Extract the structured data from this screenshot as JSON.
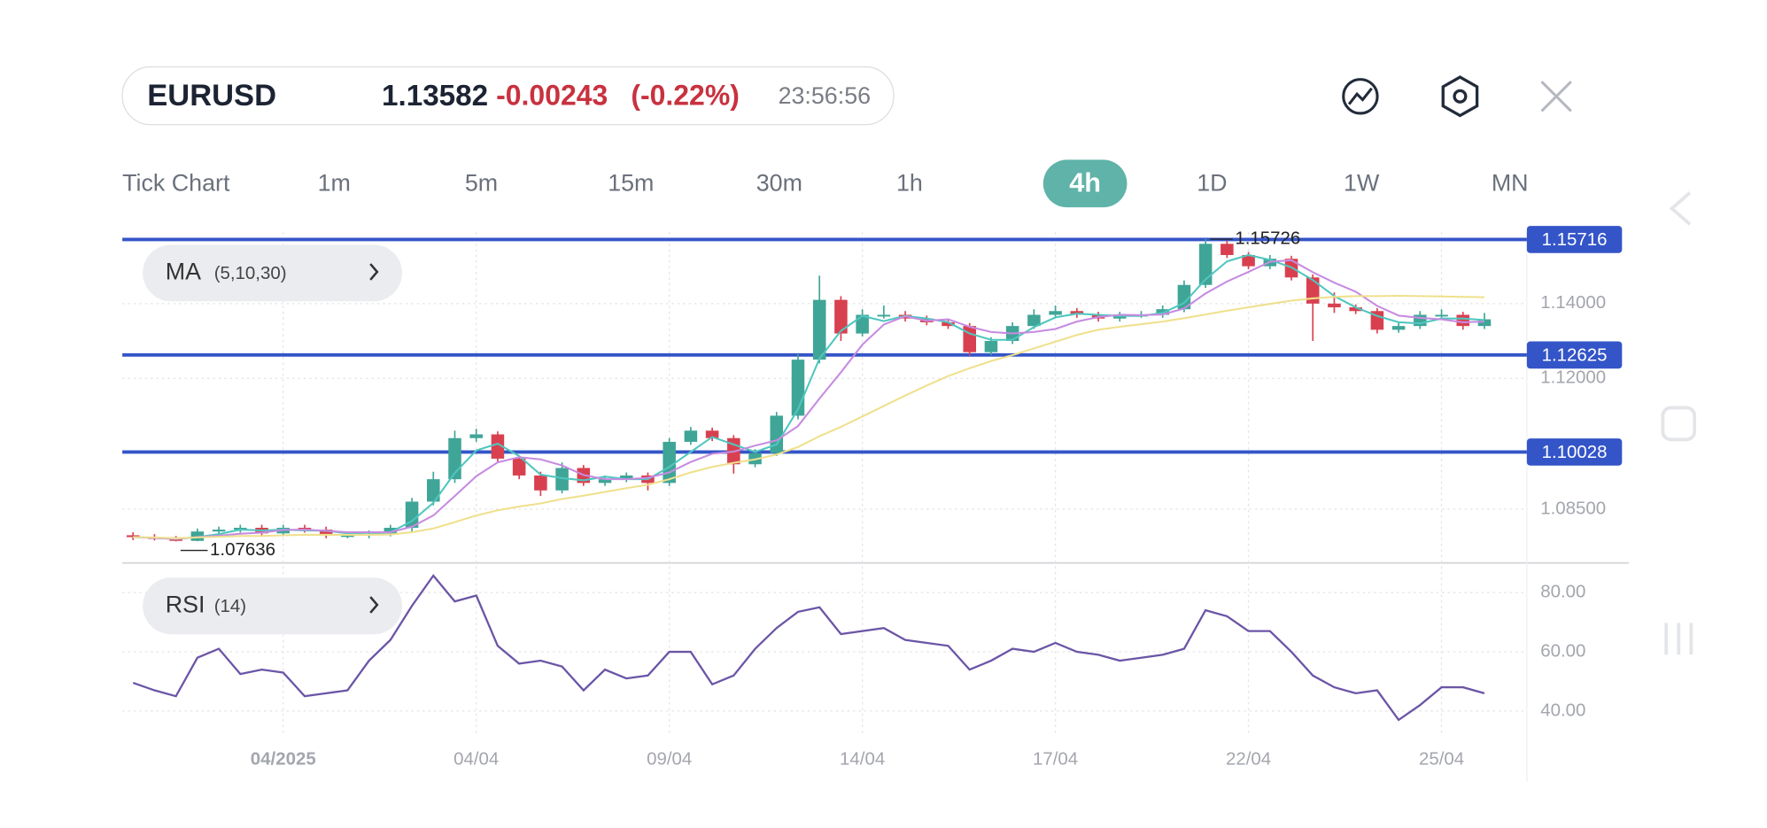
{
  "header": {
    "symbol": "EURUSD",
    "price": "1.13582",
    "change": "-0.00243",
    "change_pct": "(-0.22%)",
    "time": "23:56:56"
  },
  "timeframes": [
    "Tick Chart",
    "1m",
    "5m",
    "15m",
    "30m",
    "1h",
    "4h",
    "1D",
    "1W",
    "MN"
  ],
  "active_timeframe": 6,
  "indicators": {
    "ma": {
      "name": "MA",
      "params": "(5,10,30)"
    },
    "rsi": {
      "name": "RSI",
      "params": "(14)"
    }
  },
  "chart_data": {
    "type": "candlestick",
    "categories": [
      null,
      null,
      null,
      null,
      null,
      null,
      null,
      "04/2025",
      null,
      null,
      null,
      null,
      null,
      null,
      null,
      null,
      "04/04",
      null,
      null,
      null,
      null,
      null,
      null,
      null,
      null,
      "09/04",
      null,
      null,
      null,
      null,
      null,
      null,
      null,
      null,
      "14/04",
      null,
      null,
      null,
      null,
      null,
      null,
      null,
      null,
      "17/04",
      null,
      null,
      null,
      null,
      null,
      null,
      null,
      null,
      "22/04",
      null,
      null,
      null,
      null,
      null,
      null,
      null,
      null,
      "25/04",
      null,
      null
    ],
    "open": [
      1.078,
      1.0775,
      1.077,
      1.0765,
      1.079,
      1.0795,
      1.08,
      1.0785,
      1.08,
      1.0795,
      1.078,
      1.078,
      1.0785,
      1.08,
      1.087,
      1.093,
      1.104,
      1.105,
      1.0985,
      1.094,
      1.09,
      1.096,
      1.092,
      1.093,
      1.094,
      1.092,
      1.103,
      1.106,
      1.104,
      1.097,
      1.1,
      1.11,
      1.125,
      1.141,
      1.132,
      1.137,
      1.137,
      1.136,
      1.135,
      1.134,
      1.127,
      1.13,
      1.134,
      1.137,
      1.138,
      1.137,
      1.136,
      1.137,
      1.137,
      1.1385,
      1.145,
      1.156,
      1.153,
      1.15,
      1.152,
      1.147,
      1.14,
      1.139,
      1.138,
      1.133,
      1.134,
      1.137,
      1.137,
      1.134
    ],
    "high": [
      1.0788,
      1.0783,
      1.0778,
      1.0798,
      1.0803,
      1.0808,
      1.0808,
      1.0808,
      1.0808,
      1.0803,
      1.0788,
      1.0793,
      1.0808,
      1.088,
      1.095,
      1.106,
      1.1065,
      1.1058,
      1.0993,
      1.095,
      1.0975,
      1.0968,
      1.094,
      1.0948,
      1.0948,
      1.104,
      1.107,
      1.1068,
      1.1048,
      1.101,
      1.111,
      1.1265,
      1.1475,
      1.142,
      1.1385,
      1.1395,
      1.138,
      1.1368,
      1.1358,
      1.1348,
      1.131,
      1.135,
      1.1385,
      1.1395,
      1.1388,
      1.1378,
      1.1378,
      1.138,
      1.1395,
      1.1462,
      1.15726,
      1.1568,
      1.1538,
      1.153,
      1.1528,
      1.1478,
      1.143,
      1.1398,
      1.1388,
      1.135,
      1.138,
      1.1385,
      1.1378,
      1.1375
    ],
    "low": [
      1.0767,
      1.0766,
      1.07636,
      1.0764,
      1.0782,
      1.0787,
      1.0777,
      1.0777,
      1.0787,
      1.0772,
      1.0772,
      1.0772,
      1.0777,
      1.079,
      1.086,
      1.092,
      1.103,
      1.0975,
      1.093,
      1.0885,
      1.0892,
      1.0912,
      1.0912,
      1.0922,
      1.09,
      1.0912,
      1.1022,
      1.1032,
      1.0945,
      1.0962,
      1.0992,
      1.109,
      1.124,
      1.13,
      1.1312,
      1.136,
      1.1352,
      1.1342,
      1.1332,
      1.126,
      1.1262,
      1.1292,
      1.1332,
      1.1362,
      1.1362,
      1.1352,
      1.1352,
      1.1362,
      1.1362,
      1.1377,
      1.1442,
      1.1522,
      1.1492,
      1.1492,
      1.1462,
      1.13,
      1.1375,
      1.1372,
      1.132,
      1.1322,
      1.1332,
      1.1362,
      1.133,
      1.1332
    ],
    "close": [
      1.0775,
      1.077,
      1.0765,
      1.079,
      1.0795,
      1.08,
      1.0785,
      1.08,
      1.0795,
      1.078,
      1.078,
      1.0785,
      1.08,
      1.087,
      1.093,
      1.104,
      1.105,
      1.0985,
      1.094,
      1.09,
      1.096,
      1.092,
      1.093,
      1.094,
      1.092,
      1.103,
      1.106,
      1.104,
      1.097,
      1.1,
      1.11,
      1.125,
      1.141,
      1.132,
      1.137,
      1.137,
      1.136,
      1.135,
      1.134,
      1.127,
      1.13,
      1.134,
      1.137,
      1.138,
      1.137,
      1.136,
      1.137,
      1.137,
      1.1385,
      1.145,
      1.156,
      1.153,
      1.15,
      1.152,
      1.147,
      1.14,
      1.139,
      1.138,
      1.133,
      1.134,
      1.137,
      1.137,
      1.134,
      1.1358
    ],
    "up_color": "#3fa597",
    "down_color": "#d8404f",
    "ma_lines": [
      {
        "color": "#4fc6bf",
        "values": [
          1.0775,
          1.0773,
          1.077,
          1.0775,
          1.0783,
          1.0795,
          1.0793,
          1.0795,
          1.0793,
          1.0792,
          1.0785,
          1.0782,
          1.0788,
          1.0818,
          1.0867,
          1.0947,
          1.1007,
          1.1025,
          1.0992,
          1.0942,
          1.0933,
          1.0927,
          1.0937,
          1.093,
          1.093,
          1.0963,
          1.1003,
          1.1043,
          1.1023,
          1.1003,
          1.1023,
          1.1117,
          1.1253,
          1.1327,
          1.1367,
          1.1353,
          1.1367,
          1.136,
          1.135,
          1.132,
          1.1303,
          1.1303,
          1.1337,
          1.1363,
          1.1373,
          1.137,
          1.1367,
          1.1367,
          1.1375,
          1.1402,
          1.1465,
          1.1513,
          1.153,
          1.1517,
          1.1497,
          1.1463,
          1.142,
          1.139,
          1.1367,
          1.135,
          1.1347,
          1.136,
          1.136,
          1.1356
        ]
      },
      {
        "color": "#c68be0",
        "values": [
          1.0775,
          1.0773,
          1.077,
          1.0775,
          1.0779,
          1.0784,
          1.0787,
          1.0794,
          1.0795,
          1.0792,
          1.0788,
          1.0788,
          1.0788,
          1.0803,
          1.0833,
          1.0885,
          1.0938,
          1.0975,
          1.0989,
          1.0983,
          1.0967,
          1.0941,
          1.093,
          1.093,
          1.0934,
          1.0948,
          1.0976,
          1.0998,
          1.1004,
          1.102,
          1.1034,
          1.1072,
          1.1146,
          1.1216,
          1.129,
          1.1344,
          1.1366,
          1.1354,
          1.1358,
          1.1338,
          1.1324,
          1.132,
          1.1324,
          1.1332,
          1.1352,
          1.1364,
          1.137,
          1.1369,
          1.1371,
          1.1387,
          1.1427,
          1.1459,
          1.1485,
          1.1512,
          1.1516,
          1.1484,
          1.1456,
          1.1432,
          1.1394,
          1.1368,
          1.1362,
          1.1358,
          1.135,
          1.1352
        ]
      },
      {
        "color": "#efe08c",
        "values": [
          1.0775,
          1.0774,
          1.0772,
          1.0774,
          1.0776,
          1.0778,
          1.0778,
          1.078,
          1.0781,
          1.0781,
          1.0781,
          1.0781,
          1.0782,
          1.0788,
          1.0798,
          1.0815,
          1.0833,
          1.0847,
          1.0857,
          1.0865,
          1.0877,
          1.0886,
          1.0896,
          1.0906,
          1.0915,
          1.093,
          1.0948,
          1.0963,
          1.0974,
          1.0983,
          1.0996,
          1.1016,
          1.1045,
          1.107,
          1.1098,
          1.1126,
          1.1154,
          1.1181,
          1.1206,
          1.1227,
          1.1246,
          1.1262,
          1.128,
          1.1298,
          1.1316,
          1.133,
          1.1338,
          1.1345,
          1.1352,
          1.1361,
          1.1371,
          1.1381,
          1.139,
          1.1399,
          1.1408,
          1.1414,
          1.1418,
          1.142,
          1.142,
          1.1421,
          1.142,
          1.1419,
          1.1418,
          1.1417
        ]
      }
    ],
    "ylim": [
      1.0712,
      1.1591
    ],
    "yticks": [
      {
        "value": 1.14,
        "label": "1.14000"
      },
      {
        "value": 1.12,
        "label": "1.12000"
      },
      {
        "value": 1.085,
        "label": "1.08500"
      }
    ],
    "levels": [
      1.15716,
      1.12625,
      1.10028
    ],
    "level_color": "#3455c8",
    "rsi": {
      "values": [
        49.5,
        47,
        45,
        58,
        61,
        52.5,
        54,
        53,
        45,
        46,
        47,
        57,
        64,
        75.5,
        85.7,
        77,
        79,
        62,
        56,
        57,
        55,
        47,
        54,
        51,
        52,
        60,
        60,
        49,
        52,
        61,
        68,
        73.5,
        75,
        66,
        67,
        68,
        64,
        63,
        62,
        54,
        57,
        61,
        60,
        63,
        60,
        59,
        57,
        58,
        59,
        61,
        74,
        72,
        67,
        67,
        60,
        52,
        48,
        46,
        47,
        37,
        42,
        48,
        48,
        46
      ],
      "color": "#6b55a6",
      "ylim": [
        31.5,
        90
      ],
      "yticks": [
        {
          "value": 80,
          "label": "80.00"
        },
        {
          "value": 60,
          "label": "60.00"
        },
        {
          "value": 40,
          "label": "40.00"
        }
      ]
    },
    "grid": true
  }
}
